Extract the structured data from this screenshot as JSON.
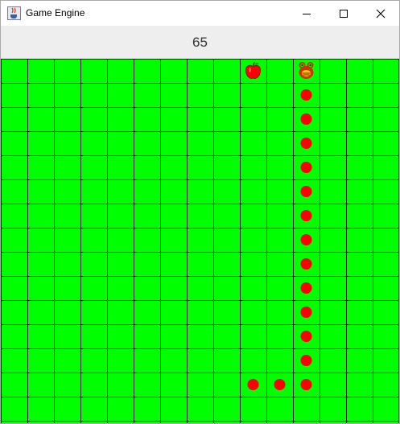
{
  "window": {
    "title": "Game Engine",
    "app_icon": "java-cup-icon",
    "controls": [
      "minimize-icon",
      "maximize-icon",
      "close-icon"
    ]
  },
  "game": {
    "score": "65",
    "board": {
      "cols": 15,
      "rows": 15,
      "background_color": "#00ff00",
      "grid_color": "#1a1a1a"
    },
    "apple": {
      "col": 9,
      "row": 0,
      "icon": "apple-icon",
      "color": "#ff0000"
    },
    "snake": {
      "head": {
        "col": 11,
        "row": 0,
        "icon": "snake-head-icon",
        "color": "#cc3300"
      },
      "body_color": "#ff0000",
      "body": [
        {
          "col": 11,
          "row": 1
        },
        {
          "col": 11,
          "row": 2
        },
        {
          "col": 11,
          "row": 3
        },
        {
          "col": 11,
          "row": 4
        },
        {
          "col": 11,
          "row": 5
        },
        {
          "col": 11,
          "row": 6
        },
        {
          "col": 11,
          "row": 7
        },
        {
          "col": 11,
          "row": 8
        },
        {
          "col": 11,
          "row": 9
        },
        {
          "col": 11,
          "row": 10
        },
        {
          "col": 11,
          "row": 11
        },
        {
          "col": 11,
          "row": 12
        },
        {
          "col": 11,
          "row": 13
        },
        {
          "col": 10,
          "row": 13
        },
        {
          "col": 9,
          "row": 13
        }
      ]
    }
  }
}
